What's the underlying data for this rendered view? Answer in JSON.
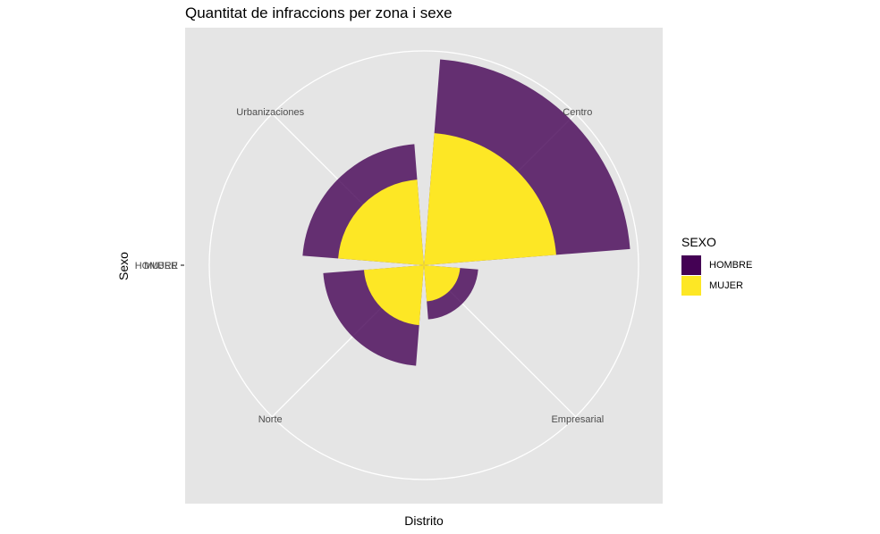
{
  "chart_data": {
    "type": "polar-bar",
    "title": "Quantitat de infraccions per zona i sexe",
    "xlabel": "Distrito",
    "ylabel": "Sexo",
    "y_tick_labels": [
      "HOMBRE",
      "MUJER"
    ],
    "categories": [
      "Centro",
      "Empresarial",
      "Norte",
      "Urbanizaciones"
    ],
    "series": [
      {
        "name": "HOMBRE",
        "color": "#440154",
        "values": [
          260,
          18,
          62,
          90
        ]
      },
      {
        "name": "MUJER",
        "color": "#FDE725",
        "values": [
          107,
          8,
          22,
          45
        ]
      }
    ],
    "radial_max": 280,
    "grid": true,
    "legend_position": "right"
  },
  "legend": {
    "title": "SEXO",
    "items": [
      {
        "label": "HOMBRE",
        "color": "#440154"
      },
      {
        "label": "MUJER",
        "color": "#FDE725"
      }
    ]
  }
}
